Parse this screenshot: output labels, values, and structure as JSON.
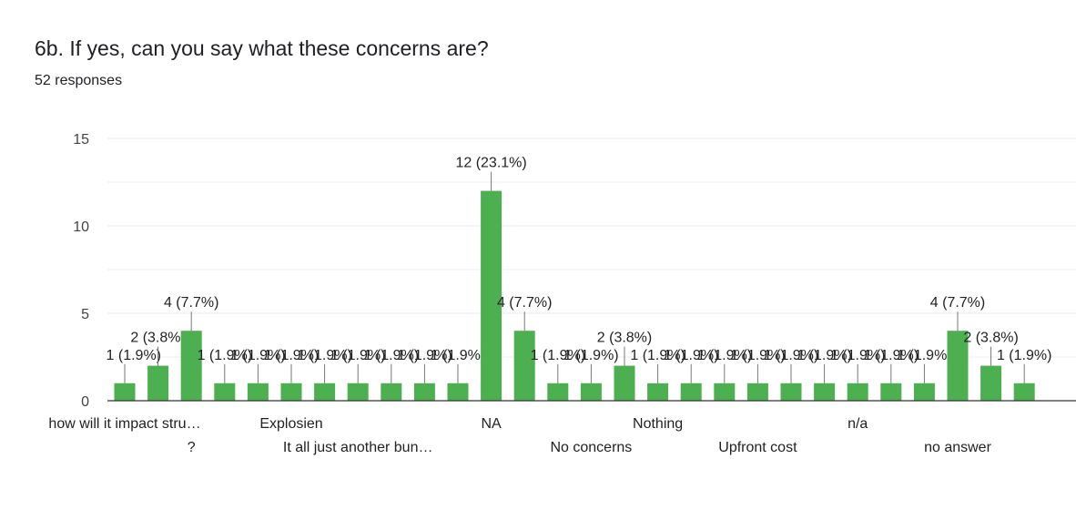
{
  "title": "6b. If yes, can you say what these concerns are?",
  "subtitle": "52 responses",
  "colors": {
    "bar": "#4caf50",
    "grid": "#e8e8e8",
    "axis": "#333333",
    "leader": "#777777"
  },
  "chart_data": {
    "type": "bar",
    "title": "6b. If yes, can you say what these concerns are?",
    "subtitle": "52 responses",
    "xlabel": "",
    "ylabel": "",
    "ylim": [
      0,
      15
    ],
    "yticks": [
      0,
      5,
      10,
      15
    ],
    "grid": true,
    "legend": "none",
    "categories": [
      "how will it impact stru…",
      "",
      "?",
      "",
      "",
      "Explosien",
      "",
      "It all just another bun…",
      "",
      "",
      "",
      "NA",
      "",
      "",
      "No concerns",
      "",
      "Nothing",
      "",
      "",
      "Upfront cost",
      "",
      "",
      "n/a",
      "",
      "",
      "no answer",
      "",
      ""
    ],
    "values": [
      1,
      2,
      4,
      1,
      1,
      1,
      1,
      1,
      1,
      1,
      1,
      12,
      4,
      1,
      1,
      2,
      1,
      1,
      1,
      1,
      1,
      1,
      1,
      1,
      1,
      4,
      2,
      1
    ],
    "data_labels": [
      "1 (1.9%)",
      "2 (3.8%)",
      "4 (7.7%)",
      "1 (1.9%)",
      "1 (1.9%)",
      "1 (1.9%)",
      "1 (1.9%)",
      "1 (1.9%)",
      "1 (1.9%)",
      "1 (1.9%)",
      "1 (1.9%)",
      "12 (23.1%)",
      "4 (7.7%)",
      "1 (1.9%)",
      "1 (1.9%)",
      "2 (3.8%)",
      "1 (1.9%)",
      "1 (1.9%)",
      "1 (1.9%)",
      "1 (1.9%)",
      "1 (1.9%)",
      "1 (1.9%)",
      "1 (1.9%)",
      "1 (1.9%)",
      "1 (1.9%)",
      "4 (7.7%)",
      "2 (3.8%)",
      "1 (1.9%)"
    ]
  }
}
